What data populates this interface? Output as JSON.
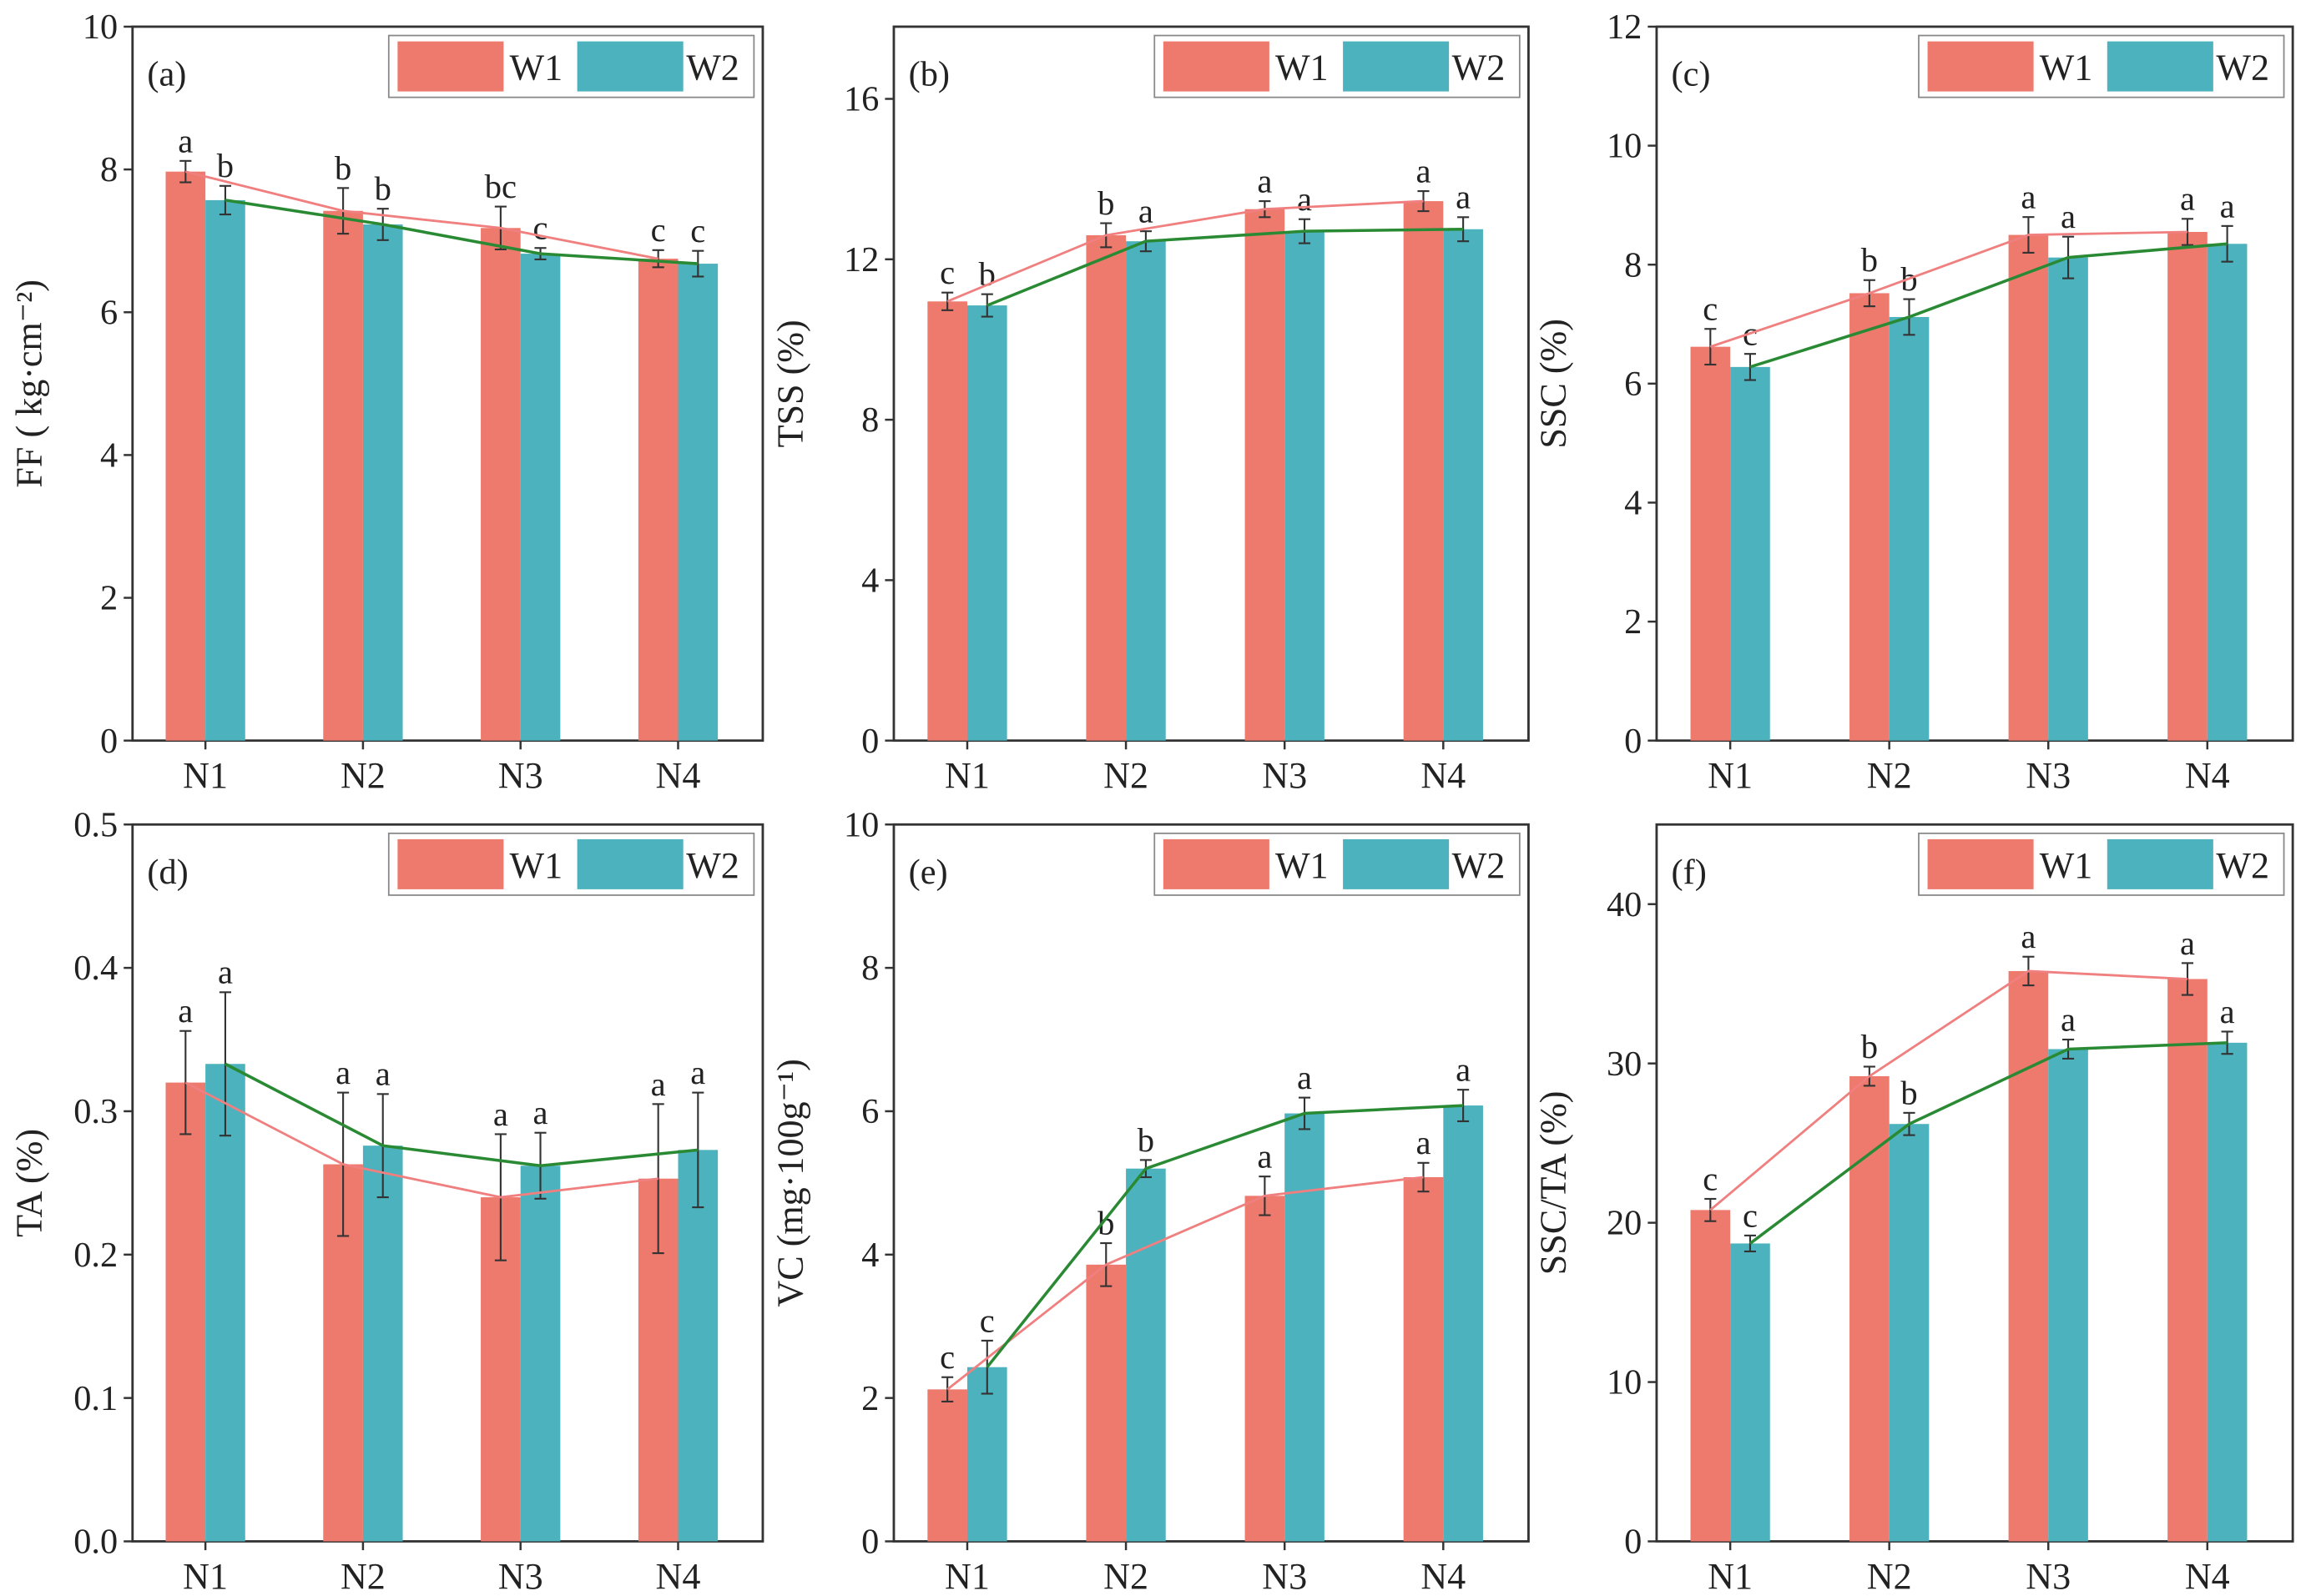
{
  "colors": {
    "W1": "#ee7a6e",
    "W2": "#4cb2bd",
    "line_W1": "#f07f7f",
    "line_W2": "#2a8a34"
  },
  "legend": [
    "W1",
    "W2"
  ],
  "chart_data": [
    {
      "type": "bar",
      "panel": "(a)",
      "categories": [
        "N1",
        "N2",
        "N3",
        "N4"
      ],
      "ylabel": "FF ( kg·cm⁻²)",
      "ylim": [
        0,
        10
      ],
      "yticks": [
        "0",
        "2",
        "4",
        "6",
        "8",
        "10"
      ],
      "ytick_values": [
        0,
        2,
        4,
        6,
        8,
        10
      ],
      "series": [
        {
          "name": "W1",
          "values": [
            7.97,
            7.42,
            7.18,
            6.75
          ],
          "errors": [
            0.15,
            0.32,
            0.3,
            0.12
          ],
          "letters": [
            "a",
            "b",
            "bc",
            "c"
          ]
        },
        {
          "name": "W2",
          "values": [
            7.57,
            7.23,
            6.82,
            6.68
          ],
          "errors": [
            0.2,
            0.22,
            0.08,
            0.18
          ],
          "letters": [
            "b",
            "b",
            "c",
            "c"
          ]
        }
      ]
    },
    {
      "type": "bar",
      "panel": "(b)",
      "categories": [
        "N1",
        "N2",
        "N3",
        "N4"
      ],
      "ylabel": "TSS (%)",
      "ylim": [
        0,
        17.8
      ],
      "yticks": [
        "0",
        "4",
        "8",
        "12",
        "16"
      ],
      "ytick_values": [
        0,
        4,
        8,
        12,
        16
      ],
      "series": [
        {
          "name": "W1",
          "values": [
            10.95,
            12.6,
            13.25,
            13.45
          ],
          "errors": [
            0.22,
            0.3,
            0.2,
            0.25
          ],
          "letters": [
            "c",
            "b",
            "a",
            "a"
          ]
        },
        {
          "name": "W2",
          "values": [
            10.85,
            12.45,
            12.7,
            12.75
          ],
          "errors": [
            0.28,
            0.25,
            0.3,
            0.3
          ],
          "letters": [
            "b",
            "a",
            "a",
            "a"
          ]
        }
      ]
    },
    {
      "type": "bar",
      "panel": "(c)",
      "categories": [
        "N1",
        "N2",
        "N3",
        "N4"
      ],
      "ylabel": "SSC (%)",
      "ylim": [
        0,
        12
      ],
      "yticks": [
        "0",
        "2",
        "4",
        "6",
        "8",
        "10",
        "12"
      ],
      "ytick_values": [
        0,
        2,
        4,
        6,
        8,
        10,
        12
      ],
      "series": [
        {
          "name": "W1",
          "values": [
            6.62,
            7.52,
            8.5,
            8.55
          ],
          "errors": [
            0.3,
            0.22,
            0.3,
            0.22
          ],
          "letters": [
            "c",
            "b",
            "a",
            "a"
          ]
        },
        {
          "name": "W2",
          "values": [
            6.28,
            7.12,
            8.12,
            8.35
          ],
          "errors": [
            0.22,
            0.3,
            0.35,
            0.3
          ],
          "letters": [
            "c",
            "b",
            "a",
            "a"
          ]
        }
      ]
    },
    {
      "type": "bar",
      "panel": "(d)",
      "categories": [
        "N1",
        "N2",
        "N3",
        "N4"
      ],
      "ylabel": "TA (%)",
      "ylim": [
        0,
        0.5
      ],
      "yticks": [
        "0.0",
        "0.1",
        "0.2",
        "0.3",
        "0.4",
        "0.5"
      ],
      "ytick_values": [
        0,
        0.1,
        0.2,
        0.3,
        0.4,
        0.5
      ],
      "series": [
        {
          "name": "W1",
          "values": [
            0.32,
            0.263,
            0.24,
            0.253
          ],
          "errors": [
            0.036,
            0.05,
            0.044,
            0.052
          ],
          "letters": [
            "a",
            "a",
            "a",
            "a"
          ]
        },
        {
          "name": "W2",
          "values": [
            0.333,
            0.276,
            0.262,
            0.273
          ],
          "errors": [
            0.05,
            0.036,
            0.023,
            0.04
          ],
          "letters": [
            "a",
            "a",
            "a",
            "a"
          ]
        }
      ]
    },
    {
      "type": "bar",
      "panel": "(e)",
      "categories": [
        "N1",
        "N2",
        "N3",
        "N4"
      ],
      "ylabel": "VC (mg·100g⁻¹)",
      "ylim": [
        0,
        10
      ],
      "yticks": [
        "0",
        "2",
        "4",
        "6",
        "8",
        "10"
      ],
      "ytick_values": [
        0,
        2,
        4,
        6,
        8,
        10
      ],
      "series": [
        {
          "name": "W1",
          "values": [
            2.12,
            3.86,
            4.82,
            5.08
          ],
          "errors": [
            0.17,
            0.3,
            0.27,
            0.2
          ],
          "letters": [
            "c",
            "b",
            "a",
            "a"
          ]
        },
        {
          "name": "W2",
          "values": [
            2.43,
            5.2,
            5.97,
            6.08
          ],
          "errors": [
            0.37,
            0.12,
            0.22,
            0.22
          ],
          "letters": [
            "c",
            "b",
            "a",
            "a"
          ]
        }
      ]
    },
    {
      "type": "bar",
      "panel": "(f)",
      "categories": [
        "N1",
        "N2",
        "N3",
        "N4"
      ],
      "ylabel": "SSC/TA (%)",
      "ylim": [
        0,
        45
      ],
      "yticks": [
        "0",
        "10",
        "20",
        "30",
        "40"
      ],
      "ytick_values": [
        0,
        10,
        20,
        30,
        40
      ],
      "series": [
        {
          "name": "W1",
          "values": [
            20.8,
            29.2,
            35.8,
            35.3
          ],
          "errors": [
            0.7,
            0.6,
            0.9,
            1.0
          ],
          "letters": [
            "c",
            "b",
            "a",
            "a"
          ]
        },
        {
          "name": "W2",
          "values": [
            18.7,
            26.2,
            30.9,
            31.3
          ],
          "errors": [
            0.5,
            0.7,
            0.6,
            0.7
          ],
          "letters": [
            "c",
            "b",
            "a",
            "a"
          ]
        }
      ]
    }
  ]
}
